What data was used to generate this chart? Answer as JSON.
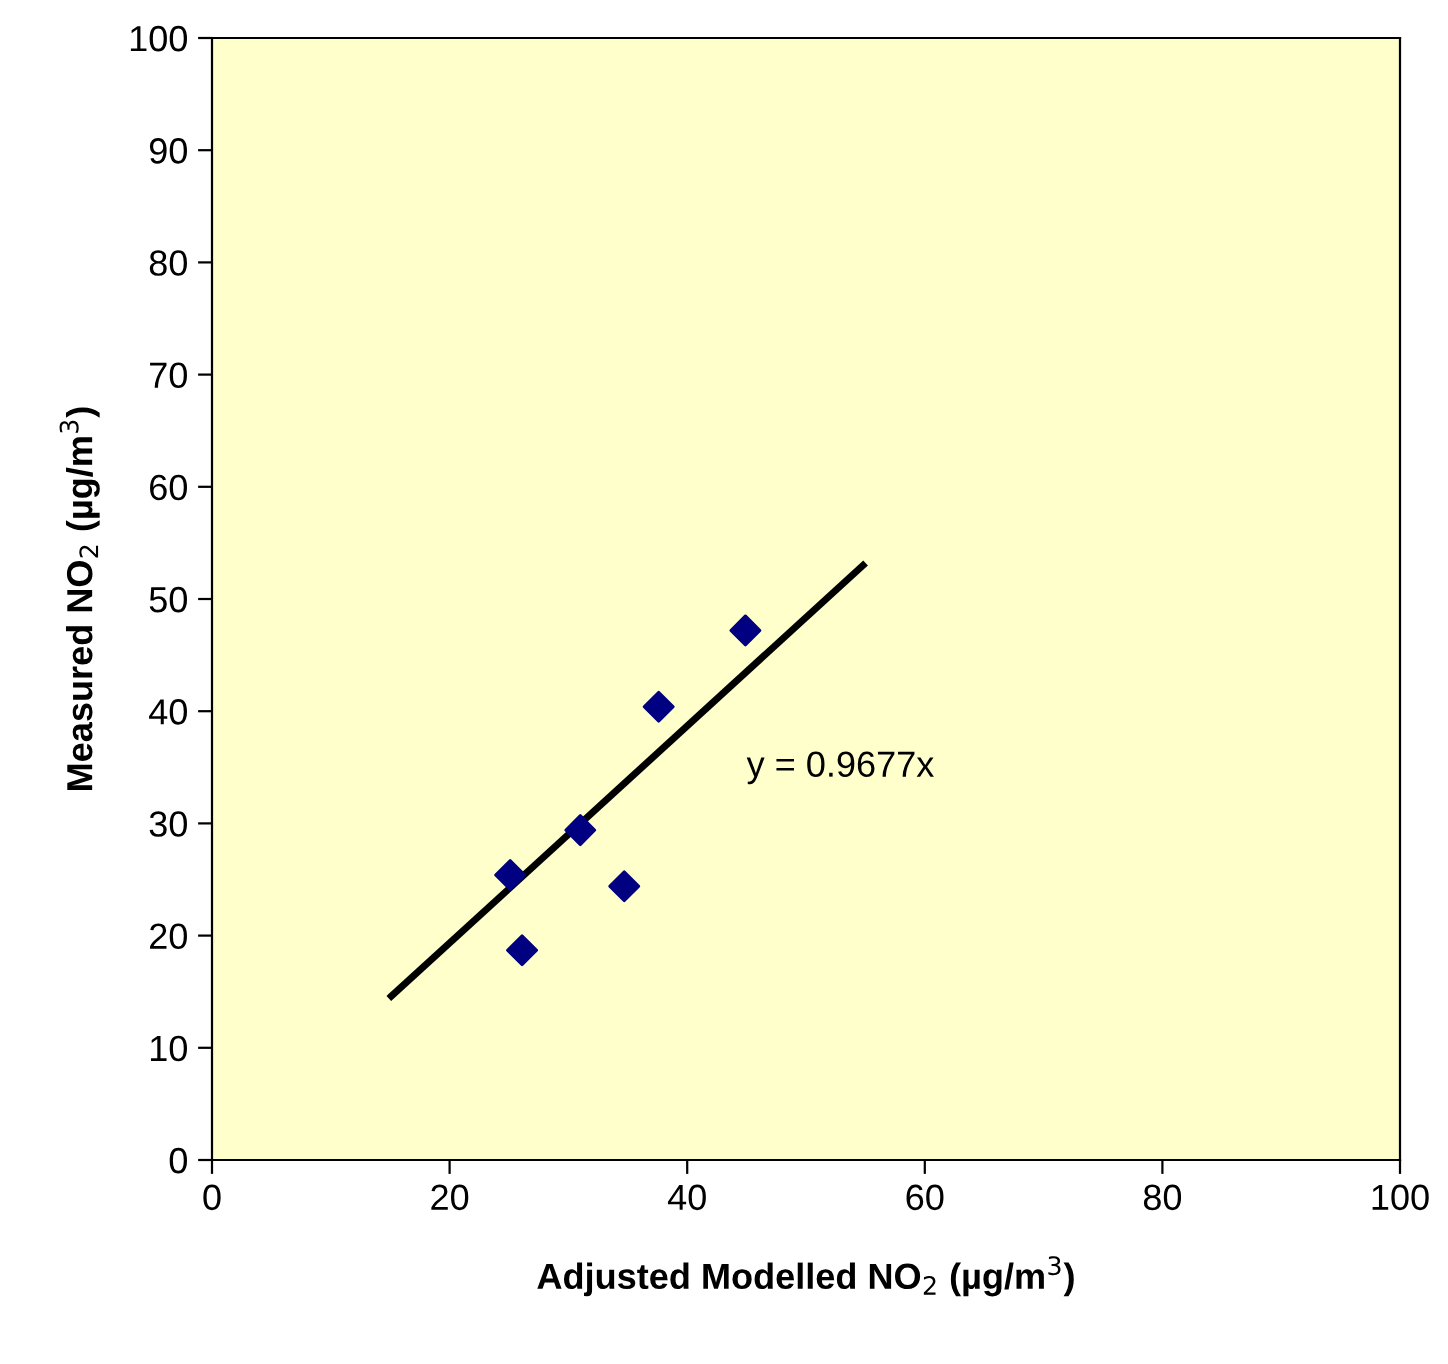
{
  "chart_data": {
    "type": "scatter",
    "xlabel": "Adjusted Modelled NO$_{2}$ (µg/m$^{3}$)",
    "ylabel": "Measured NO$_{2}$ (µg/m$^{3}$)",
    "x": [
      25.1,
      26.1,
      31.0,
      34.7,
      37.6,
      44.9
    ],
    "series": [
      {
        "color": "#000080",
        "marker": "diamond",
        "values": [
          25.4,
          18.7,
          29.4,
          24.4,
          40.4,
          47.2
        ]
      },
      {
        "type": "line",
        "color": "#000000",
        "marker": "none",
        "line_style": "solid",
        "x": [
          15.1,
          54.8
        ],
        "values": [
          14.6,
          53.0
        ]
      }
    ],
    "annotations": [
      "y = 0.9677x"
    ],
    "xlim": [
      0,
      100
    ],
    "ylim": [
      0,
      100
    ],
    "xticks": [
      0,
      20,
      40,
      60,
      80,
      100
    ],
    "yticks": [
      0,
      10,
      20,
      30,
      40,
      50,
      60,
      70,
      80,
      90,
      100
    ],
    "grid": false,
    "legend": false
  }
}
